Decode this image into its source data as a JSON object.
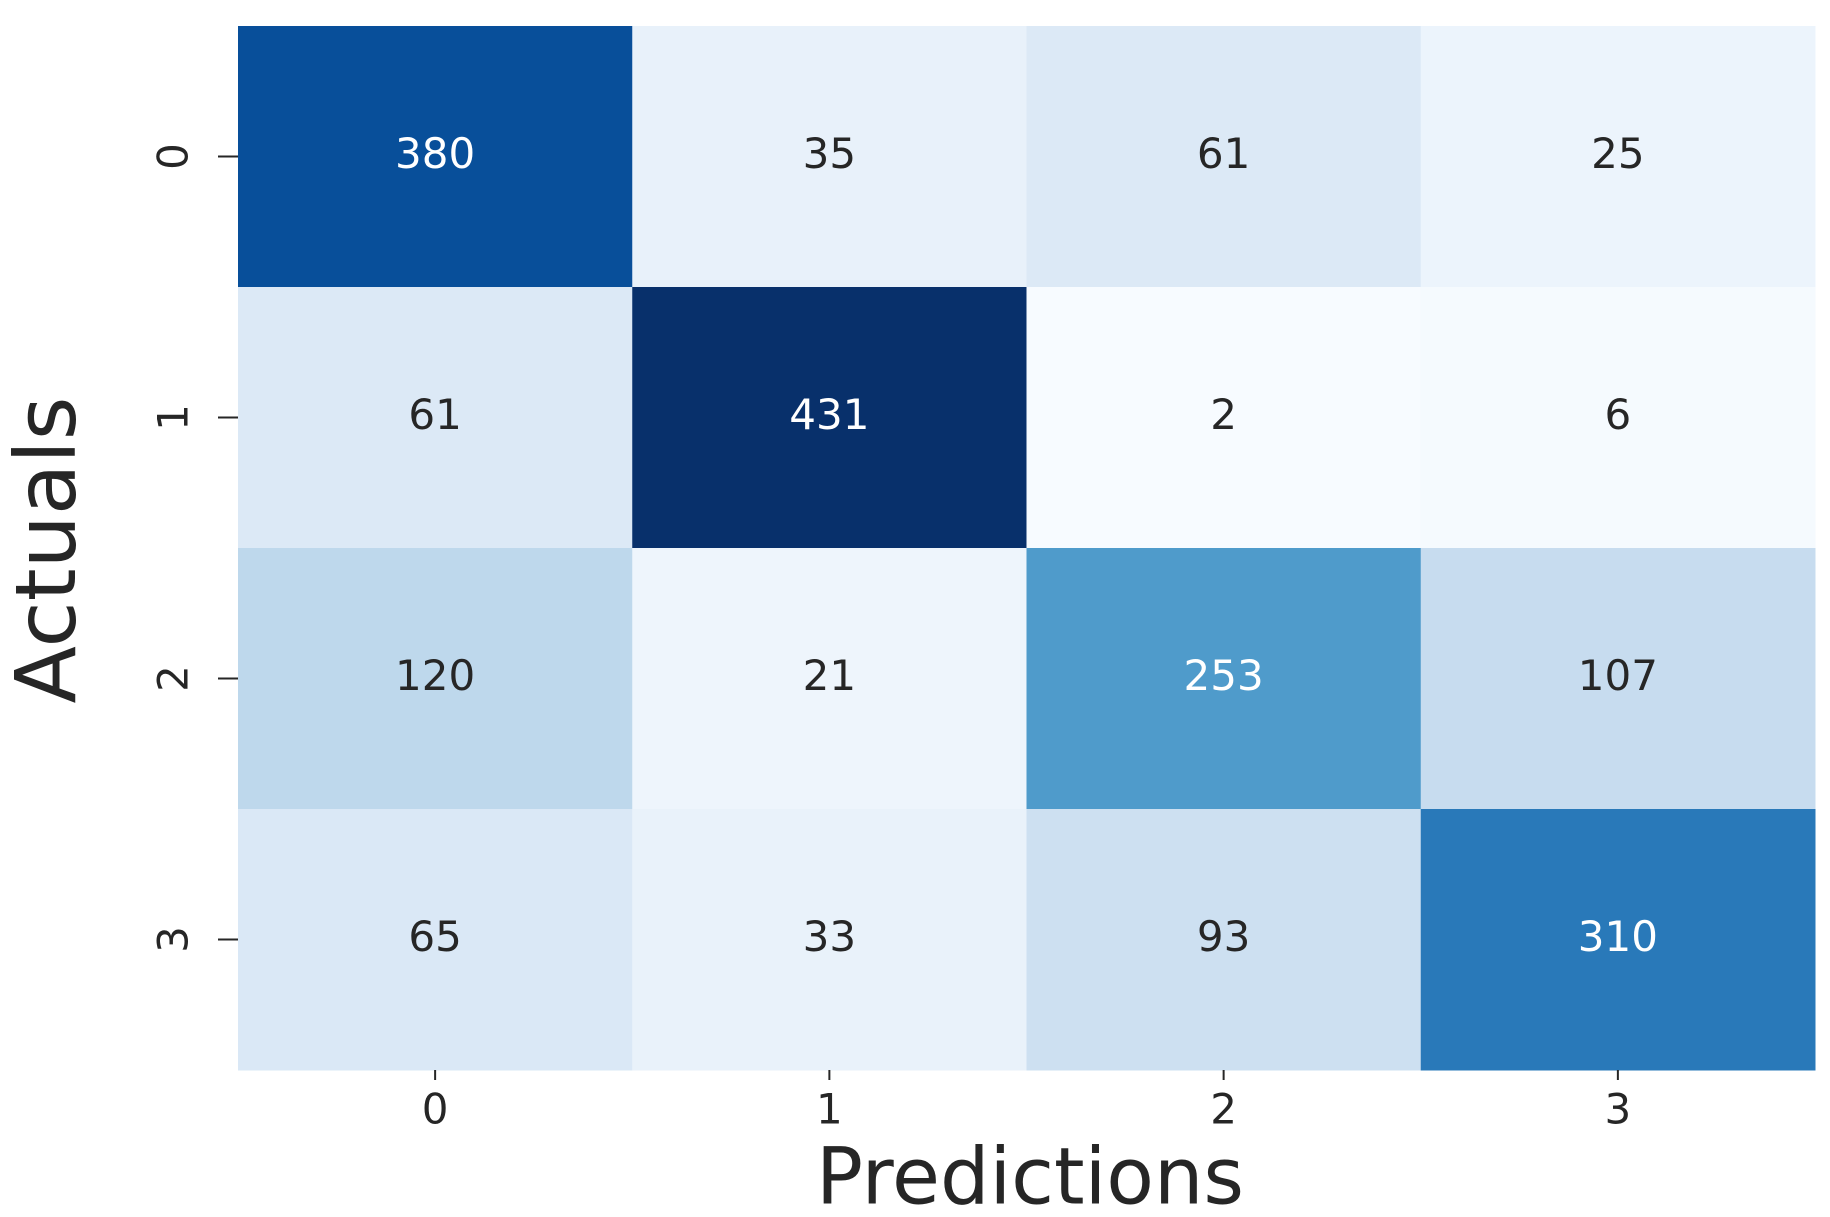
{
  "chart_data": {
    "type": "heatmap",
    "x_label": "Predictions",
    "y_label": "Actuals",
    "x_categories": [
      "0",
      "1",
      "2",
      "3"
    ],
    "y_categories": [
      "0",
      "1",
      "2",
      "3"
    ],
    "values": [
      [
        380,
        35,
        61,
        25
      ],
      [
        61,
        431,
        2,
        6
      ],
      [
        120,
        21,
        253,
        107
      ],
      [
        65,
        33,
        93,
        310
      ]
    ],
    "colormap": "Blues"
  }
}
